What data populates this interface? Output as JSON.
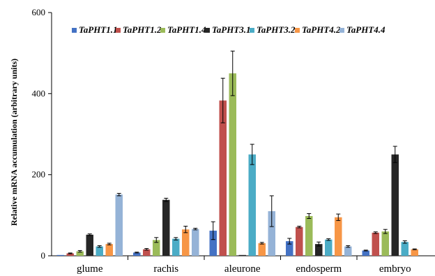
{
  "chart_data": {
    "type": "bar",
    "ylabel": "Relative mRNA accumulation (arbitrary units)",
    "ylim": [
      0,
      600
    ],
    "yticks": [
      "0",
      "200",
      "400",
      "600"
    ],
    "categories": [
      "glume",
      "rachis",
      "aleurone",
      "endosperm",
      "embryo"
    ],
    "legend_position": "top",
    "series": [
      {
        "name": "TaPHT1.1",
        "color": "#4472c4",
        "values": [
          2,
          8,
          62,
          36,
          13
        ],
        "errors": [
          0,
          1,
          22,
          7,
          1
        ]
      },
      {
        "name": "TaPHT1.2",
        "color": "#c0504d",
        "values": [
          6,
          16,
          383,
          71,
          57
        ],
        "errors": [
          1,
          2,
          55,
          2,
          2
        ]
      },
      {
        "name": "TaPHT1.4",
        "color": "#9bbb59",
        "values": [
          11,
          39,
          450,
          98,
          60
        ],
        "errors": [
          2,
          6,
          55,
          6,
          5
        ]
      },
      {
        "name": "TaPHT3.1",
        "color": "#262626",
        "values": [
          52,
          138,
          2,
          29,
          250
        ],
        "errors": [
          2,
          4,
          0,
          5,
          20
        ]
      },
      {
        "name": "TaPHT3.2",
        "color": "#4bacc6",
        "values": [
          23,
          42,
          250,
          40,
          34
        ],
        "errors": [
          2,
          3,
          25,
          2,
          3
        ]
      },
      {
        "name": "TaPHT4.2",
        "color": "#f79646",
        "values": [
          29,
          65,
          31,
          95,
          16
        ],
        "errors": [
          2,
          8,
          2,
          8,
          1
        ]
      },
      {
        "name": "TaPHT4.4",
        "color": "#95b3d7",
        "values": [
          151,
          66,
          110,
          23,
          0
        ],
        "errors": [
          3,
          2,
          38,
          2,
          0
        ]
      }
    ]
  }
}
